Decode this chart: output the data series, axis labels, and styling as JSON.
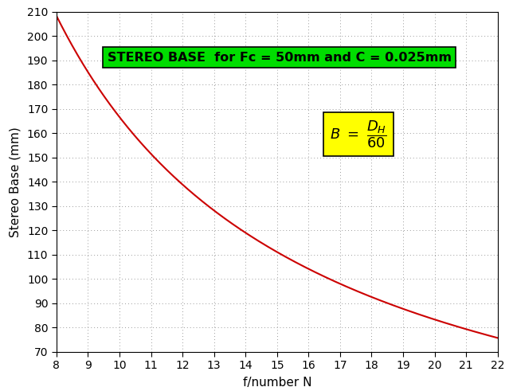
{
  "Fc": 50,
  "C": 0.025,
  "divisor": 60,
  "N_min": 8,
  "N_max": 22,
  "y_min": 70,
  "y_max": 210,
  "x_ticks": [
    8,
    9,
    10,
    11,
    12,
    13,
    14,
    15,
    16,
    17,
    18,
    19,
    20,
    21,
    22
  ],
  "y_ticks": [
    70,
    80,
    90,
    100,
    110,
    120,
    130,
    140,
    150,
    160,
    170,
    180,
    190,
    200,
    210
  ],
  "title": "STEREO BASE  for Fc = 50mm and C = 0.025mm",
  "xlabel": "f/number N",
  "ylabel": "Stereo Base (mm)",
  "line_color": "#cc0000",
  "line_width": 1.5,
  "grid_color": "#999999",
  "title_bg": "#00dd00",
  "formula_bg": "#ffff00",
  "background_color": "#ffffff",
  "title_fontsize": 11.5,
  "axis_fontsize": 11,
  "tick_fontsize": 10,
  "formula_fontsize": 13
}
